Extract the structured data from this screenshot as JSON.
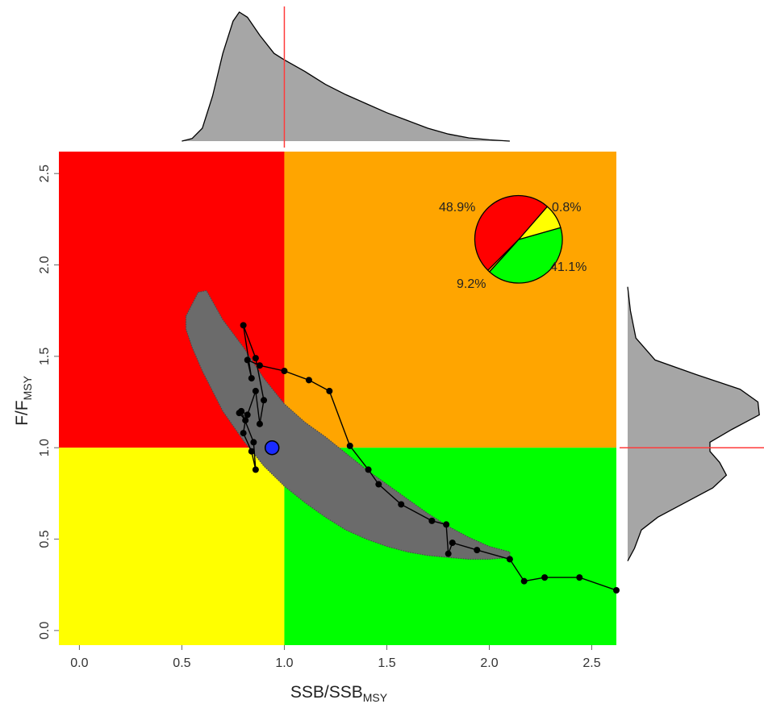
{
  "chart_data": {
    "type": "kobe",
    "xlabel": {
      "main": "SSB/SSB",
      "sub": "MSY"
    },
    "ylabel": {
      "main": "F/F",
      "sub": "MSY"
    },
    "xlim": [
      -0.1,
      2.62
    ],
    "ylim": [
      -0.08,
      2.62
    ],
    "xticks": [
      0.0,
      0.5,
      1.0,
      1.5,
      2.0,
      2.5
    ],
    "xtick_labels": [
      "0.0",
      "0.5",
      "1.0",
      "1.5",
      "2.0",
      "2.5"
    ],
    "yticks": [
      0.0,
      0.5,
      1.0,
      1.5,
      2.0,
      2.5
    ],
    "ytick_labels": [
      "0.0",
      "0.5",
      "1.0",
      "1.5",
      "2.0",
      "2.5"
    ],
    "reference": {
      "x": 1.0,
      "y": 1.0
    },
    "quadrant_colors": {
      "top_left": "#ff0000",
      "top_right": "#ffa500",
      "bottom_left": "#ffff00",
      "bottom_right": "#00ff00"
    },
    "uncertainty_cloud": {
      "color": "#6b6b6b",
      "upper": [
        [
          0.52,
          1.72
        ],
        [
          0.58,
          1.85
        ],
        [
          0.62,
          1.86
        ],
        [
          0.7,
          1.7
        ],
        [
          0.8,
          1.55
        ],
        [
          0.9,
          1.38
        ],
        [
          1.0,
          1.24
        ],
        [
          1.1,
          1.14
        ],
        [
          1.2,
          1.06
        ],
        [
          1.3,
          0.97
        ],
        [
          1.4,
          0.88
        ],
        [
          1.5,
          0.8
        ],
        [
          1.6,
          0.72
        ],
        [
          1.7,
          0.64
        ],
        [
          1.8,
          0.57
        ],
        [
          1.9,
          0.51
        ],
        [
          2.0,
          0.46
        ],
        [
          2.1,
          0.43
        ]
      ],
      "lower": [
        [
          2.1,
          0.4
        ],
        [
          2.0,
          0.39
        ],
        [
          1.9,
          0.39
        ],
        [
          1.8,
          0.4
        ],
        [
          1.7,
          0.41
        ],
        [
          1.6,
          0.43
        ],
        [
          1.5,
          0.46
        ],
        [
          1.4,
          0.5
        ],
        [
          1.3,
          0.55
        ],
        [
          1.2,
          0.62
        ],
        [
          1.1,
          0.7
        ],
        [
          1.0,
          0.79
        ],
        [
          0.9,
          0.9
        ],
        [
          0.8,
          1.04
        ],
        [
          0.7,
          1.2
        ],
        [
          0.6,
          1.42
        ],
        [
          0.55,
          1.55
        ],
        [
          0.52,
          1.65
        ]
      ]
    },
    "trajectory": {
      "color": "#000000",
      "points": [
        [
          2.62,
          0.22
        ],
        [
          2.44,
          0.29
        ],
        [
          2.27,
          0.29
        ],
        [
          2.17,
          0.27
        ],
        [
          2.1,
          0.39
        ],
        [
          1.94,
          0.44
        ],
        [
          1.82,
          0.48
        ],
        [
          1.8,
          0.42
        ],
        [
          1.79,
          0.58
        ],
        [
          1.72,
          0.6
        ],
        [
          1.57,
          0.69
        ],
        [
          1.46,
          0.8
        ],
        [
          1.41,
          0.88
        ],
        [
          1.32,
          1.01
        ],
        [
          1.22,
          1.31
        ],
        [
          1.12,
          1.37
        ],
        [
          1.0,
          1.42
        ],
        [
          0.88,
          1.45
        ],
        [
          0.82,
          1.48
        ],
        [
          0.84,
          1.38
        ],
        [
          0.8,
          1.67
        ],
        [
          0.86,
          1.49
        ],
        [
          0.9,
          1.26
        ],
        [
          0.88,
          1.13
        ],
        [
          0.86,
          1.31
        ],
        [
          0.82,
          1.18
        ],
        [
          0.79,
          1.2
        ],
        [
          0.85,
          1.03
        ],
        [
          0.86,
          0.88
        ],
        [
          0.84,
          0.98
        ],
        [
          0.8,
          1.08
        ],
        [
          0.81,
          1.15
        ],
        [
          0.78,
          1.19
        ]
      ]
    },
    "current_point": {
      "x": 0.94,
      "y": 1.0,
      "color": "#1a2bff"
    },
    "top_density": {
      "color": "#a6a6a6",
      "points": [
        [
          0.5,
          0.0
        ],
        [
          0.55,
          0.02
        ],
        [
          0.6,
          0.1
        ],
        [
          0.65,
          0.35
        ],
        [
          0.7,
          0.68
        ],
        [
          0.75,
          0.93
        ],
        [
          0.78,
          1.0
        ],
        [
          0.82,
          0.96
        ],
        [
          0.88,
          0.82
        ],
        [
          0.95,
          0.68
        ],
        [
          1.0,
          0.63
        ],
        [
          1.1,
          0.54
        ],
        [
          1.2,
          0.44
        ],
        [
          1.3,
          0.36
        ],
        [
          1.4,
          0.29
        ],
        [
          1.5,
          0.22
        ],
        [
          1.6,
          0.16
        ],
        [
          1.7,
          0.1
        ],
        [
          1.8,
          0.055
        ],
        [
          1.9,
          0.025
        ],
        [
          2.0,
          0.01
        ],
        [
          2.1,
          0.0
        ]
      ]
    },
    "right_density": {
      "color": "#a6a6a6",
      "points": [
        [
          0.38,
          0.0
        ],
        [
          0.45,
          0.05
        ],
        [
          0.55,
          0.1
        ],
        [
          0.62,
          0.22
        ],
        [
          0.7,
          0.42
        ],
        [
          0.78,
          0.62
        ],
        [
          0.85,
          0.72
        ],
        [
          0.92,
          0.67
        ],
        [
          0.98,
          0.6
        ],
        [
          1.03,
          0.6
        ],
        [
          1.1,
          0.76
        ],
        [
          1.18,
          0.96
        ],
        [
          1.25,
          0.95
        ],
        [
          1.32,
          0.82
        ],
        [
          1.4,
          0.5
        ],
        [
          1.48,
          0.2
        ],
        [
          1.6,
          0.06
        ],
        [
          1.75,
          0.02
        ],
        [
          1.88,
          0.0
        ]
      ]
    },
    "pie": {
      "slices": [
        {
          "label": "48.9%",
          "value": 48.9,
          "color": "#ff0000"
        },
        {
          "label": "0.8%",
          "value": 0.8,
          "color": "#ffa500"
        },
        {
          "label": "41.1%",
          "value": 41.1,
          "color": "#00ff00"
        },
        {
          "label": "9.2%",
          "value": 9.2,
          "color": "#ffff00"
        }
      ]
    }
  }
}
